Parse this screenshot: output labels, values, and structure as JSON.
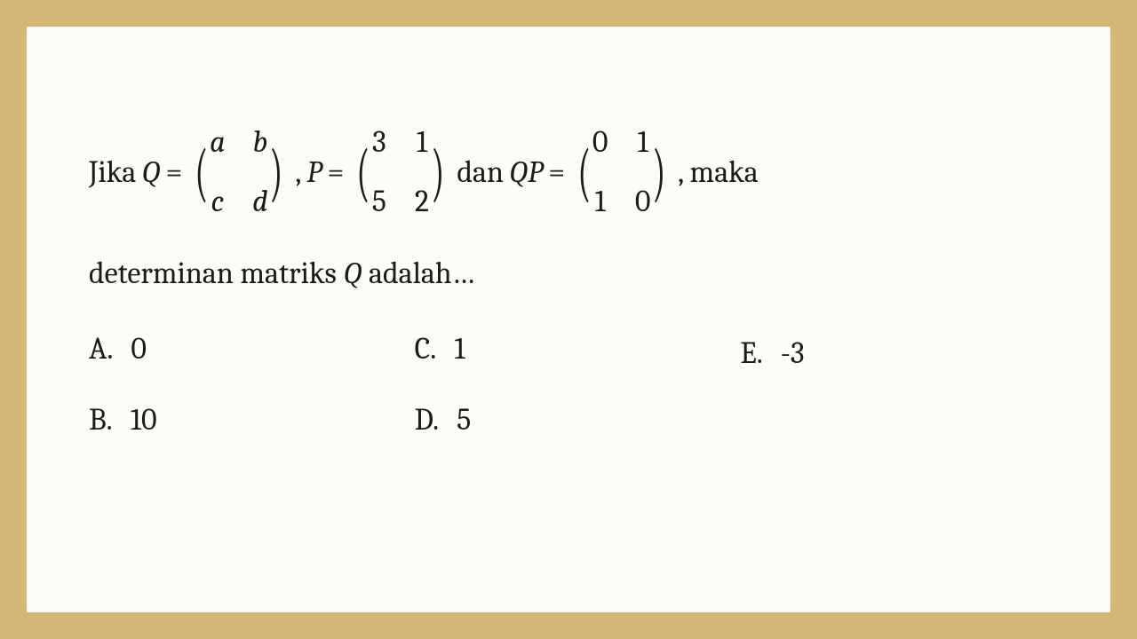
{
  "colors": {
    "frame": "#d4b678",
    "background": "#fdfcf7",
    "text": "#1a1a1a"
  },
  "typography": {
    "body_fontsize": 34,
    "font_family": "Cambria"
  },
  "question": {
    "prefix": "Jika ",
    "var_Q": "Q",
    "eq": " = ",
    "matrix_Q": {
      "r1c1": "a",
      "r1c2": "b",
      "r2c1": "c",
      "r2c2": "d"
    },
    "comma1": " , ",
    "var_P": "P",
    "matrix_P": {
      "r1c1": "3",
      "r1c2": "1",
      "r2c1": "5",
      "r2c2": "2"
    },
    "dan": " dan ",
    "var_QP": "QP",
    "matrix_QP": {
      "r1c1": "0",
      "r1c2": "1",
      "r2c1": "1",
      "r2c2": "0"
    },
    "suffix": ", maka",
    "line2_pre": "determinan matriks ",
    "line2_var": "Q",
    "line2_post": " adalah…"
  },
  "options": {
    "A": {
      "letter": "A.",
      "value": "0"
    },
    "B": {
      "letter": "B.",
      "value": "10"
    },
    "C": {
      "letter": "C.",
      "value": "1"
    },
    "D": {
      "letter": "D.",
      "value": "5"
    },
    "E": {
      "letter": "E.",
      "value": "-3"
    }
  }
}
